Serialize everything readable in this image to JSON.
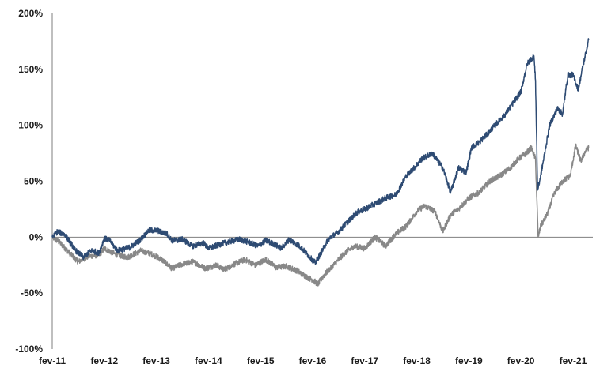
{
  "chart_data": {
    "type": "line",
    "title": "",
    "xlabel": "",
    "ylabel": "",
    "ylim": [
      -100,
      200
    ],
    "y_ticks": [
      -100,
      -50,
      0,
      50,
      100,
      150,
      200
    ],
    "y_tick_labels": [
      "-100%",
      "-50%",
      "0%",
      "50%",
      "100%",
      "150%",
      "200%"
    ],
    "x_tick_labels": [
      "fev-11",
      "fev-12",
      "fev-13",
      "fev-14",
      "fev-15",
      "fev-16",
      "fev-17",
      "fev-18",
      "fev-19",
      "fev-20",
      "fev-21"
    ],
    "x_tick_years": [
      2011,
      2012,
      2013,
      2014,
      2015,
      2016,
      2017,
      2018,
      2019,
      2020,
      2021
    ],
    "grid": false,
    "legend": "none",
    "series": [
      {
        "color": "#2e4b73",
        "points": [
          [
            2011.0,
            0
          ],
          [
            2011.1,
            5
          ],
          [
            2011.25,
            2
          ],
          [
            2011.45,
            -12
          ],
          [
            2011.6,
            -18
          ],
          [
            2011.75,
            -12
          ],
          [
            2011.9,
            -14
          ],
          [
            2012.0,
            -1
          ],
          [
            2012.1,
            -3
          ],
          [
            2012.25,
            -12
          ],
          [
            2012.5,
            -9
          ],
          [
            2012.7,
            -2
          ],
          [
            2012.85,
            6
          ],
          [
            2013.0,
            6
          ],
          [
            2013.2,
            3
          ],
          [
            2013.3,
            -3
          ],
          [
            2013.5,
            -2
          ],
          [
            2013.7,
            -8
          ],
          [
            2013.9,
            -5
          ],
          [
            2014.0,
            -10
          ],
          [
            2014.25,
            -6
          ],
          [
            2014.4,
            -4
          ],
          [
            2014.6,
            -2
          ],
          [
            2014.8,
            -5
          ],
          [
            2014.95,
            -8
          ],
          [
            2015.1,
            -3
          ],
          [
            2015.25,
            -6
          ],
          [
            2015.4,
            -10
          ],
          [
            2015.55,
            -2
          ],
          [
            2015.75,
            -8
          ],
          [
            2015.95,
            -18
          ],
          [
            2016.05,
            -23
          ],
          [
            2016.15,
            -15
          ],
          [
            2016.3,
            -2
          ],
          [
            2016.5,
            5
          ],
          [
            2016.7,
            15
          ],
          [
            2016.85,
            22
          ],
          [
            2017.0,
            25
          ],
          [
            2017.2,
            30
          ],
          [
            2017.4,
            35
          ],
          [
            2017.6,
            38
          ],
          [
            2017.8,
            55
          ],
          [
            2017.95,
            62
          ],
          [
            2018.1,
            70
          ],
          [
            2018.3,
            75
          ],
          [
            2018.5,
            62
          ],
          [
            2018.65,
            40
          ],
          [
            2018.8,
            62
          ],
          [
            2018.95,
            58
          ],
          [
            2019.05,
            80
          ],
          [
            2019.2,
            85
          ],
          [
            2019.35,
            92
          ],
          [
            2019.5,
            100
          ],
          [
            2019.7,
            110
          ],
          [
            2019.85,
            120
          ],
          [
            2020.0,
            130
          ],
          [
            2020.12,
            155
          ],
          [
            2020.25,
            162
          ],
          [
            2020.28,
            140
          ],
          [
            2020.32,
            42
          ],
          [
            2020.38,
            55
          ],
          [
            2020.55,
            100
          ],
          [
            2020.7,
            115
          ],
          [
            2020.8,
            110
          ],
          [
            2020.9,
            145
          ],
          [
            2021.0,
            145
          ],
          [
            2021.1,
            132
          ],
          [
            2021.2,
            155
          ],
          [
            2021.3,
            176
          ]
        ]
      },
      {
        "color": "#888888",
        "points": [
          [
            2011.0,
            0
          ],
          [
            2011.15,
            -5
          ],
          [
            2011.35,
            -15
          ],
          [
            2011.5,
            -22
          ],
          [
            2011.7,
            -17
          ],
          [
            2011.9,
            -16
          ],
          [
            2012.0,
            -10
          ],
          [
            2012.2,
            -15
          ],
          [
            2012.45,
            -18
          ],
          [
            2012.7,
            -12
          ],
          [
            2012.9,
            -15
          ],
          [
            2013.1,
            -20
          ],
          [
            2013.3,
            -28
          ],
          [
            2013.5,
            -24
          ],
          [
            2013.7,
            -22
          ],
          [
            2013.95,
            -28
          ],
          [
            2014.15,
            -25
          ],
          [
            2014.3,
            -29
          ],
          [
            2014.5,
            -24
          ],
          [
            2014.7,
            -20
          ],
          [
            2014.9,
            -25
          ],
          [
            2015.1,
            -20
          ],
          [
            2015.3,
            -27
          ],
          [
            2015.5,
            -26
          ],
          [
            2015.7,
            -30
          ],
          [
            2015.9,
            -36
          ],
          [
            2016.0,
            -38
          ],
          [
            2016.1,
            -42
          ],
          [
            2016.2,
            -35
          ],
          [
            2016.4,
            -25
          ],
          [
            2016.6,
            -15
          ],
          [
            2016.8,
            -8
          ],
          [
            2017.0,
            -10
          ],
          [
            2017.2,
            0
          ],
          [
            2017.4,
            -8
          ],
          [
            2017.6,
            3
          ],
          [
            2017.8,
            10
          ],
          [
            2018.0,
            23
          ],
          [
            2018.15,
            28
          ],
          [
            2018.35,
            23
          ],
          [
            2018.5,
            5
          ],
          [
            2018.65,
            20
          ],
          [
            2018.8,
            25
          ],
          [
            2019.0,
            35
          ],
          [
            2019.2,
            40
          ],
          [
            2019.4,
            50
          ],
          [
            2019.6,
            55
          ],
          [
            2019.8,
            62
          ],
          [
            2019.95,
            70
          ],
          [
            2020.1,
            75
          ],
          [
            2020.2,
            80
          ],
          [
            2020.28,
            70
          ],
          [
            2020.33,
            0
          ],
          [
            2020.38,
            10
          ],
          [
            2020.5,
            20
          ],
          [
            2020.65,
            40
          ],
          [
            2020.8,
            50
          ],
          [
            2020.95,
            55
          ],
          [
            2021.05,
            82
          ],
          [
            2021.15,
            68
          ],
          [
            2021.25,
            78
          ],
          [
            2021.3,
            80
          ]
        ]
      }
    ]
  }
}
